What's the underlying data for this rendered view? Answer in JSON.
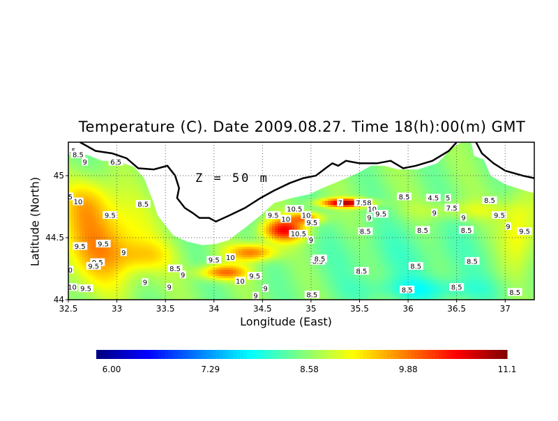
{
  "title": "Temperature (C). Date 2009.08.27. Time 18(h):00(m) GMT",
  "depth_label": "Z = 50 m",
  "x_axis": {
    "label": "Longitude (East)",
    "ticks": [
      "32.5",
      "33",
      "33.5",
      "34",
      "34.5",
      "35",
      "35.5",
      "36",
      "36.5",
      "37"
    ],
    "range": [
      32.5,
      37.3
    ]
  },
  "y_axis": {
    "label": "Latitude (North)",
    "ticks": [
      "44",
      "44.5",
      "45"
    ],
    "range": [
      44.0,
      45.27
    ]
  },
  "colorbar": {
    "min": 6.0,
    "max": 11.1,
    "tick_labels": [
      "6.00",
      "7.29",
      "8.58",
      "9.88",
      "11.1"
    ],
    "colors": [
      "#00007f",
      "#0000ff",
      "#007fff",
      "#00ffff",
      "#7fff7f",
      "#ffff00",
      "#ff7f00",
      "#ff0000",
      "#7f0000"
    ]
  },
  "colors": {
    "land": "#ffffff",
    "coast": "#000000",
    "contour": "#1a1a1a",
    "grid": "#555555"
  },
  "contour_labels": [
    {
      "text": "5.5",
      "lon": 32.52,
      "lat": 45.2
    },
    {
      "text": "8.5",
      "lon": 32.6,
      "lat": 45.17
    },
    {
      "text": "9",
      "lon": 32.67,
      "lat": 45.11
    },
    {
      "text": "6.5",
      "lon": 32.99,
      "lat": 45.11
    },
    {
      "text": "5",
      "lon": 32.52,
      "lat": 44.83
    },
    {
      "text": "10",
      "lon": 32.6,
      "lat": 44.79
    },
    {
      "text": "8.5",
      "lon": 33.27,
      "lat": 44.77
    },
    {
      "text": "9.5",
      "lon": 32.93,
      "lat": 44.68
    },
    {
      "text": "9.5",
      "lon": 32.62,
      "lat": 44.43
    },
    {
      "text": "9.5",
      "lon": 32.86,
      "lat": 44.45
    },
    {
      "text": "9",
      "lon": 33.07,
      "lat": 44.38
    },
    {
      "text": "9.5",
      "lon": 32.8,
      "lat": 44.3
    },
    {
      "text": "9.5",
      "lon": 32.76,
      "lat": 44.27
    },
    {
      "text": "0",
      "lon": 32.52,
      "lat": 44.24
    },
    {
      "text": "10",
      "lon": 32.54,
      "lat": 44.1
    },
    {
      "text": "9.5",
      "lon": 32.68,
      "lat": 44.09
    },
    {
      "text": "9",
      "lon": 33.29,
      "lat": 44.14
    },
    {
      "text": "9",
      "lon": 33.54,
      "lat": 44.1
    },
    {
      "text": "8.5",
      "lon": 33.6,
      "lat": 44.25
    },
    {
      "text": "9",
      "lon": 33.68,
      "lat": 44.2
    },
    {
      "text": "9.5",
      "lon": 34.0,
      "lat": 44.32
    },
    {
      "text": "10",
      "lon": 34.17,
      "lat": 44.34
    },
    {
      "text": "9.5",
      "lon": 34.42,
      "lat": 44.19
    },
    {
      "text": "10",
      "lon": 34.27,
      "lat": 44.15
    },
    {
      "text": "9",
      "lon": 34.53,
      "lat": 44.09
    },
    {
      "text": "9",
      "lon": 34.43,
      "lat": 44.03
    },
    {
      "text": "10.5",
      "lon": 34.83,
      "lat": 44.73
    },
    {
      "text": "9.5",
      "lon": 34.61,
      "lat": 44.68
    },
    {
      "text": "10",
      "lon": 34.74,
      "lat": 44.65
    },
    {
      "text": "10",
      "lon": 34.95,
      "lat": 44.68
    },
    {
      "text": "9.5",
      "lon": 35.01,
      "lat": 44.62
    },
    {
      "text": "10.5",
      "lon": 34.87,
      "lat": 44.53
    },
    {
      "text": "9",
      "lon": 35.0,
      "lat": 44.48
    },
    {
      "text": "8.5",
      "lon": 35.07,
      "lat": 44.31
    },
    {
      "text": "8.5",
      "lon": 35.01,
      "lat": 44.04
    },
    {
      "text": "7",
      "lon": 35.3,
      "lat": 44.78
    },
    {
      "text": "7.5",
      "lon": 35.52,
      "lat": 44.78
    },
    {
      "text": "8",
      "lon": 35.6,
      "lat": 44.78
    },
    {
      "text": "10",
      "lon": 35.63,
      "lat": 44.73
    },
    {
      "text": "9.5",
      "lon": 35.72,
      "lat": 44.69
    },
    {
      "text": "9",
      "lon": 35.6,
      "lat": 44.66
    },
    {
      "text": "8.5",
      "lon": 35.96,
      "lat": 44.83
    },
    {
      "text": "4.5",
      "lon": 36.26,
      "lat": 44.82
    },
    {
      "text": "5",
      "lon": 36.41,
      "lat": 44.82
    },
    {
      "text": "7.5",
      "lon": 36.45,
      "lat": 44.74
    },
    {
      "text": "8.5",
      "lon": 36.84,
      "lat": 44.8
    },
    {
      "text": "9",
      "lon": 36.27,
      "lat": 44.7
    },
    {
      "text": "9",
      "lon": 36.57,
      "lat": 44.66
    },
    {
      "text": "9.5",
      "lon": 36.94,
      "lat": 44.68
    },
    {
      "text": "8.5",
      "lon": 35.56,
      "lat": 44.55
    },
    {
      "text": "8.5",
      "lon": 36.15,
      "lat": 44.56
    },
    {
      "text": "8.5",
      "lon": 36.6,
      "lat": 44.56
    },
    {
      "text": "9",
      "lon": 37.03,
      "lat": 44.59
    },
    {
      "text": "9.5",
      "lon": 37.2,
      "lat": 44.55
    },
    {
      "text": "8.5",
      "lon": 35.09,
      "lat": 44.33
    },
    {
      "text": "8.5",
      "lon": 35.52,
      "lat": 44.23
    },
    {
      "text": "8.5",
      "lon": 36.08,
      "lat": 44.27
    },
    {
      "text": "8.5",
      "lon": 36.66,
      "lat": 44.31
    },
    {
      "text": "8.5",
      "lon": 35.99,
      "lat": 44.08
    },
    {
      "text": "8.5",
      "lon": 36.5,
      "lat": 44.1
    },
    {
      "text": "8.5",
      "lon": 37.1,
      "lat": 44.06
    }
  ]
}
